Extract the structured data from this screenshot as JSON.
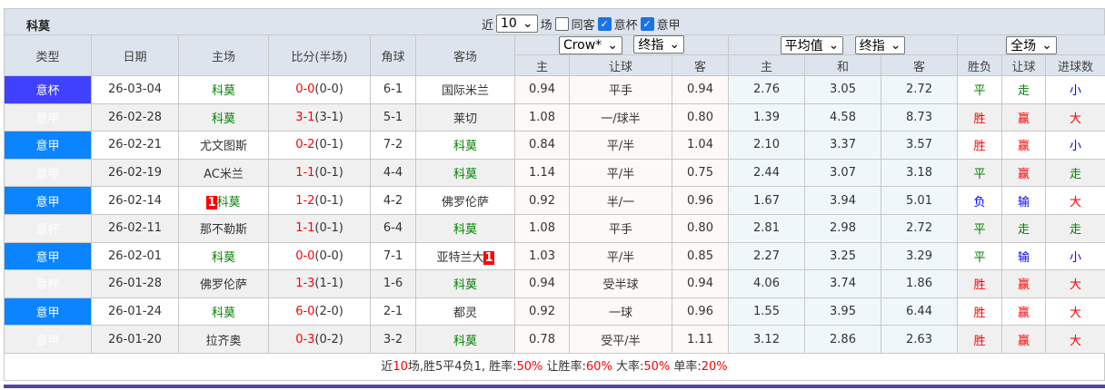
{
  "title": "科莫",
  "controls": {
    "near": "近",
    "count": "10",
    "unit": "场",
    "same_venue": "同客",
    "same_venue_checked": false,
    "cup": "意杯",
    "cup_checked": true,
    "league": "意甲",
    "league_checked": true
  },
  "dropdowns": {
    "company": "Crow*",
    "odds_type": "终指",
    "avg": "平均值",
    "avg_type": "终指",
    "period": "全场"
  },
  "headers": {
    "type": "类型",
    "date": "日期",
    "home": "主场",
    "score": "比分(半场)",
    "corner": "角球",
    "away": "客场",
    "h_home": "主",
    "h_line": "让球",
    "h_away": "客",
    "e_home": "主",
    "e_draw": "和",
    "e_away": "客",
    "wl": "胜负",
    "hcp": "让球",
    "goals": "进球数"
  },
  "rows": [
    {
      "type": "意杯",
      "date": "26-03-04",
      "home": "科莫",
      "home_badge": "",
      "ft": "0-0",
      "ht": "(0-0)",
      "corner": "6-1",
      "away": "国际米兰",
      "away_badge": "",
      "oh": "0.94",
      "line": "平手",
      "oa": "0.94",
      "eh": "2.76",
      "ed": "3.05",
      "ea": "2.72",
      "wl": "平",
      "hcp": "走",
      "goals": "小"
    },
    {
      "type": "意甲",
      "date": "26-02-28",
      "home": "科莫",
      "home_badge": "",
      "ft": "3-1",
      "ht": "(3-1)",
      "corner": "5-1",
      "away": "莱切",
      "away_badge": "",
      "oh": "1.08",
      "line": "一/球半",
      "oa": "0.80",
      "eh": "1.39",
      "ed": "4.58",
      "ea": "8.73",
      "wl": "胜",
      "hcp": "赢",
      "goals": "大"
    },
    {
      "type": "意甲",
      "date": "26-02-21",
      "home": "尤文图斯",
      "home_badge": "",
      "ft": "0-2",
      "ht": "(0-1)",
      "corner": "7-2",
      "away": "科莫",
      "away_badge": "",
      "oh": "0.84",
      "line": "平/半",
      "oa": "1.04",
      "eh": "2.10",
      "ed": "3.37",
      "ea": "3.57",
      "wl": "胜",
      "hcp": "赢",
      "goals": "小"
    },
    {
      "type": "意甲",
      "date": "26-02-19",
      "home": "AC米兰",
      "home_badge": "",
      "ft": "1-1",
      "ht": "(0-1)",
      "corner": "4-4",
      "away": "科莫",
      "away_badge": "",
      "oh": "1.14",
      "line": "平/半",
      "oa": "0.75",
      "eh": "2.44",
      "ed": "3.07",
      "ea": "3.18",
      "wl": "平",
      "hcp": "赢",
      "goals": "走"
    },
    {
      "type": "意甲",
      "date": "26-02-14",
      "home": "科莫",
      "home_badge": "1",
      "ft": "1-2",
      "ht": "(0-1)",
      "corner": "4-2",
      "away": "佛罗伦萨",
      "away_badge": "",
      "oh": "0.92",
      "line": "半/一",
      "oa": "0.96",
      "eh": "1.67",
      "ed": "3.94",
      "ea": "5.01",
      "wl": "负",
      "hcp": "输",
      "goals": "大"
    },
    {
      "type": "意杯",
      "date": "26-02-11",
      "home": "那不勒斯",
      "home_badge": "",
      "ft": "1-1",
      "ht": "(0-1)",
      "corner": "6-4",
      "away": "科莫",
      "away_badge": "",
      "oh": "1.08",
      "line": "平手",
      "oa": "0.80",
      "eh": "2.81",
      "ed": "2.98",
      "ea": "2.72",
      "wl": "平",
      "hcp": "走",
      "goals": "走"
    },
    {
      "type": "意甲",
      "date": "26-02-01",
      "home": "科莫",
      "home_badge": "",
      "ft": "0-0",
      "ht": "(0-0)",
      "corner": "7-1",
      "away": "亚特兰大",
      "away_badge": "1",
      "oh": "1.03",
      "line": "平/半",
      "oa": "0.85",
      "eh": "2.27",
      "ed": "3.25",
      "ea": "3.29",
      "wl": "平",
      "hcp": "输",
      "goals": "小"
    },
    {
      "type": "意杯",
      "date": "26-01-28",
      "home": "佛罗伦萨",
      "home_badge": "",
      "ft": "1-3",
      "ht": "(1-1)",
      "corner": "1-6",
      "away": "科莫",
      "away_badge": "",
      "oh": "0.94",
      "line": "受半球",
      "oa": "0.94",
      "eh": "4.06",
      "ed": "3.74",
      "ea": "1.86",
      "wl": "胜",
      "hcp": "赢",
      "goals": "大"
    },
    {
      "type": "意甲",
      "date": "26-01-24",
      "home": "科莫",
      "home_badge": "",
      "ft": "6-0",
      "ht": "(2-0)",
      "corner": "2-1",
      "away": "都灵",
      "away_badge": "",
      "oh": "0.92",
      "line": "一球",
      "oa": "0.96",
      "eh": "1.55",
      "ed": "3.95",
      "ea": "6.44",
      "wl": "胜",
      "hcp": "赢",
      "goals": "大"
    },
    {
      "type": "意甲",
      "date": "26-01-20",
      "home": "拉齐奥",
      "home_badge": "",
      "ft": "0-3",
      "ht": "(0-2)",
      "corner": "3-2",
      "away": "科莫",
      "away_badge": "",
      "oh": "0.78",
      "line": "受平/半",
      "oa": "1.11",
      "eh": "3.12",
      "ed": "2.86",
      "ea": "2.63",
      "wl": "胜",
      "hcp": "赢",
      "goals": "大"
    }
  ],
  "summary": {
    "p1": "近",
    "n": "10",
    "p2": "场,胜5平4负1, 胜率:",
    "win": "50%",
    "p3": " 让胜率:",
    "hwin": "60%",
    "p4": " 大率:",
    "big": "50%",
    "p5": " 单率:",
    "odd": "20%"
  },
  "colors": {
    "cup": "#4040ff",
    "league": "#0a84ff",
    "focus_team": "#008000",
    "win": "#ff0000",
    "draw": "#008000",
    "loss": "#0000ff"
  }
}
